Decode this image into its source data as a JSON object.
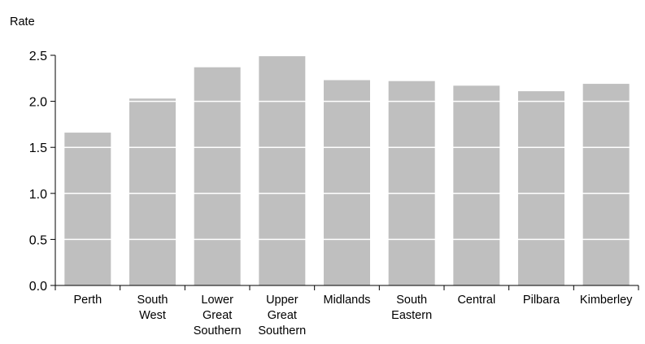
{
  "chart_data": {
    "type": "bar",
    "title": "",
    "xlabel": "",
    "ylabel": "Rate",
    "categories": [
      [
        "Perth"
      ],
      [
        "South",
        "West"
      ],
      [
        "Lower",
        "Great",
        "Southern"
      ],
      [
        "Upper",
        "Great",
        "Southern"
      ],
      [
        "Midlands"
      ],
      [
        "South",
        "Eastern"
      ],
      [
        "Central"
      ],
      [
        "Pilbara"
      ],
      [
        "Kimberley"
      ]
    ],
    "values": [
      1.66,
      2.03,
      2.37,
      2.49,
      2.23,
      2.22,
      2.17,
      2.11,
      2.19
    ],
    "ylim": [
      0,
      2.5
    ],
    "yticks": [
      "0.0",
      "0.5",
      "1.0",
      "1.5",
      "2.0",
      "2.5"
    ],
    "grid": "horizontal white lines across bars",
    "bar_color": "#bfbfbf",
    "axis_color": "#000000"
  }
}
